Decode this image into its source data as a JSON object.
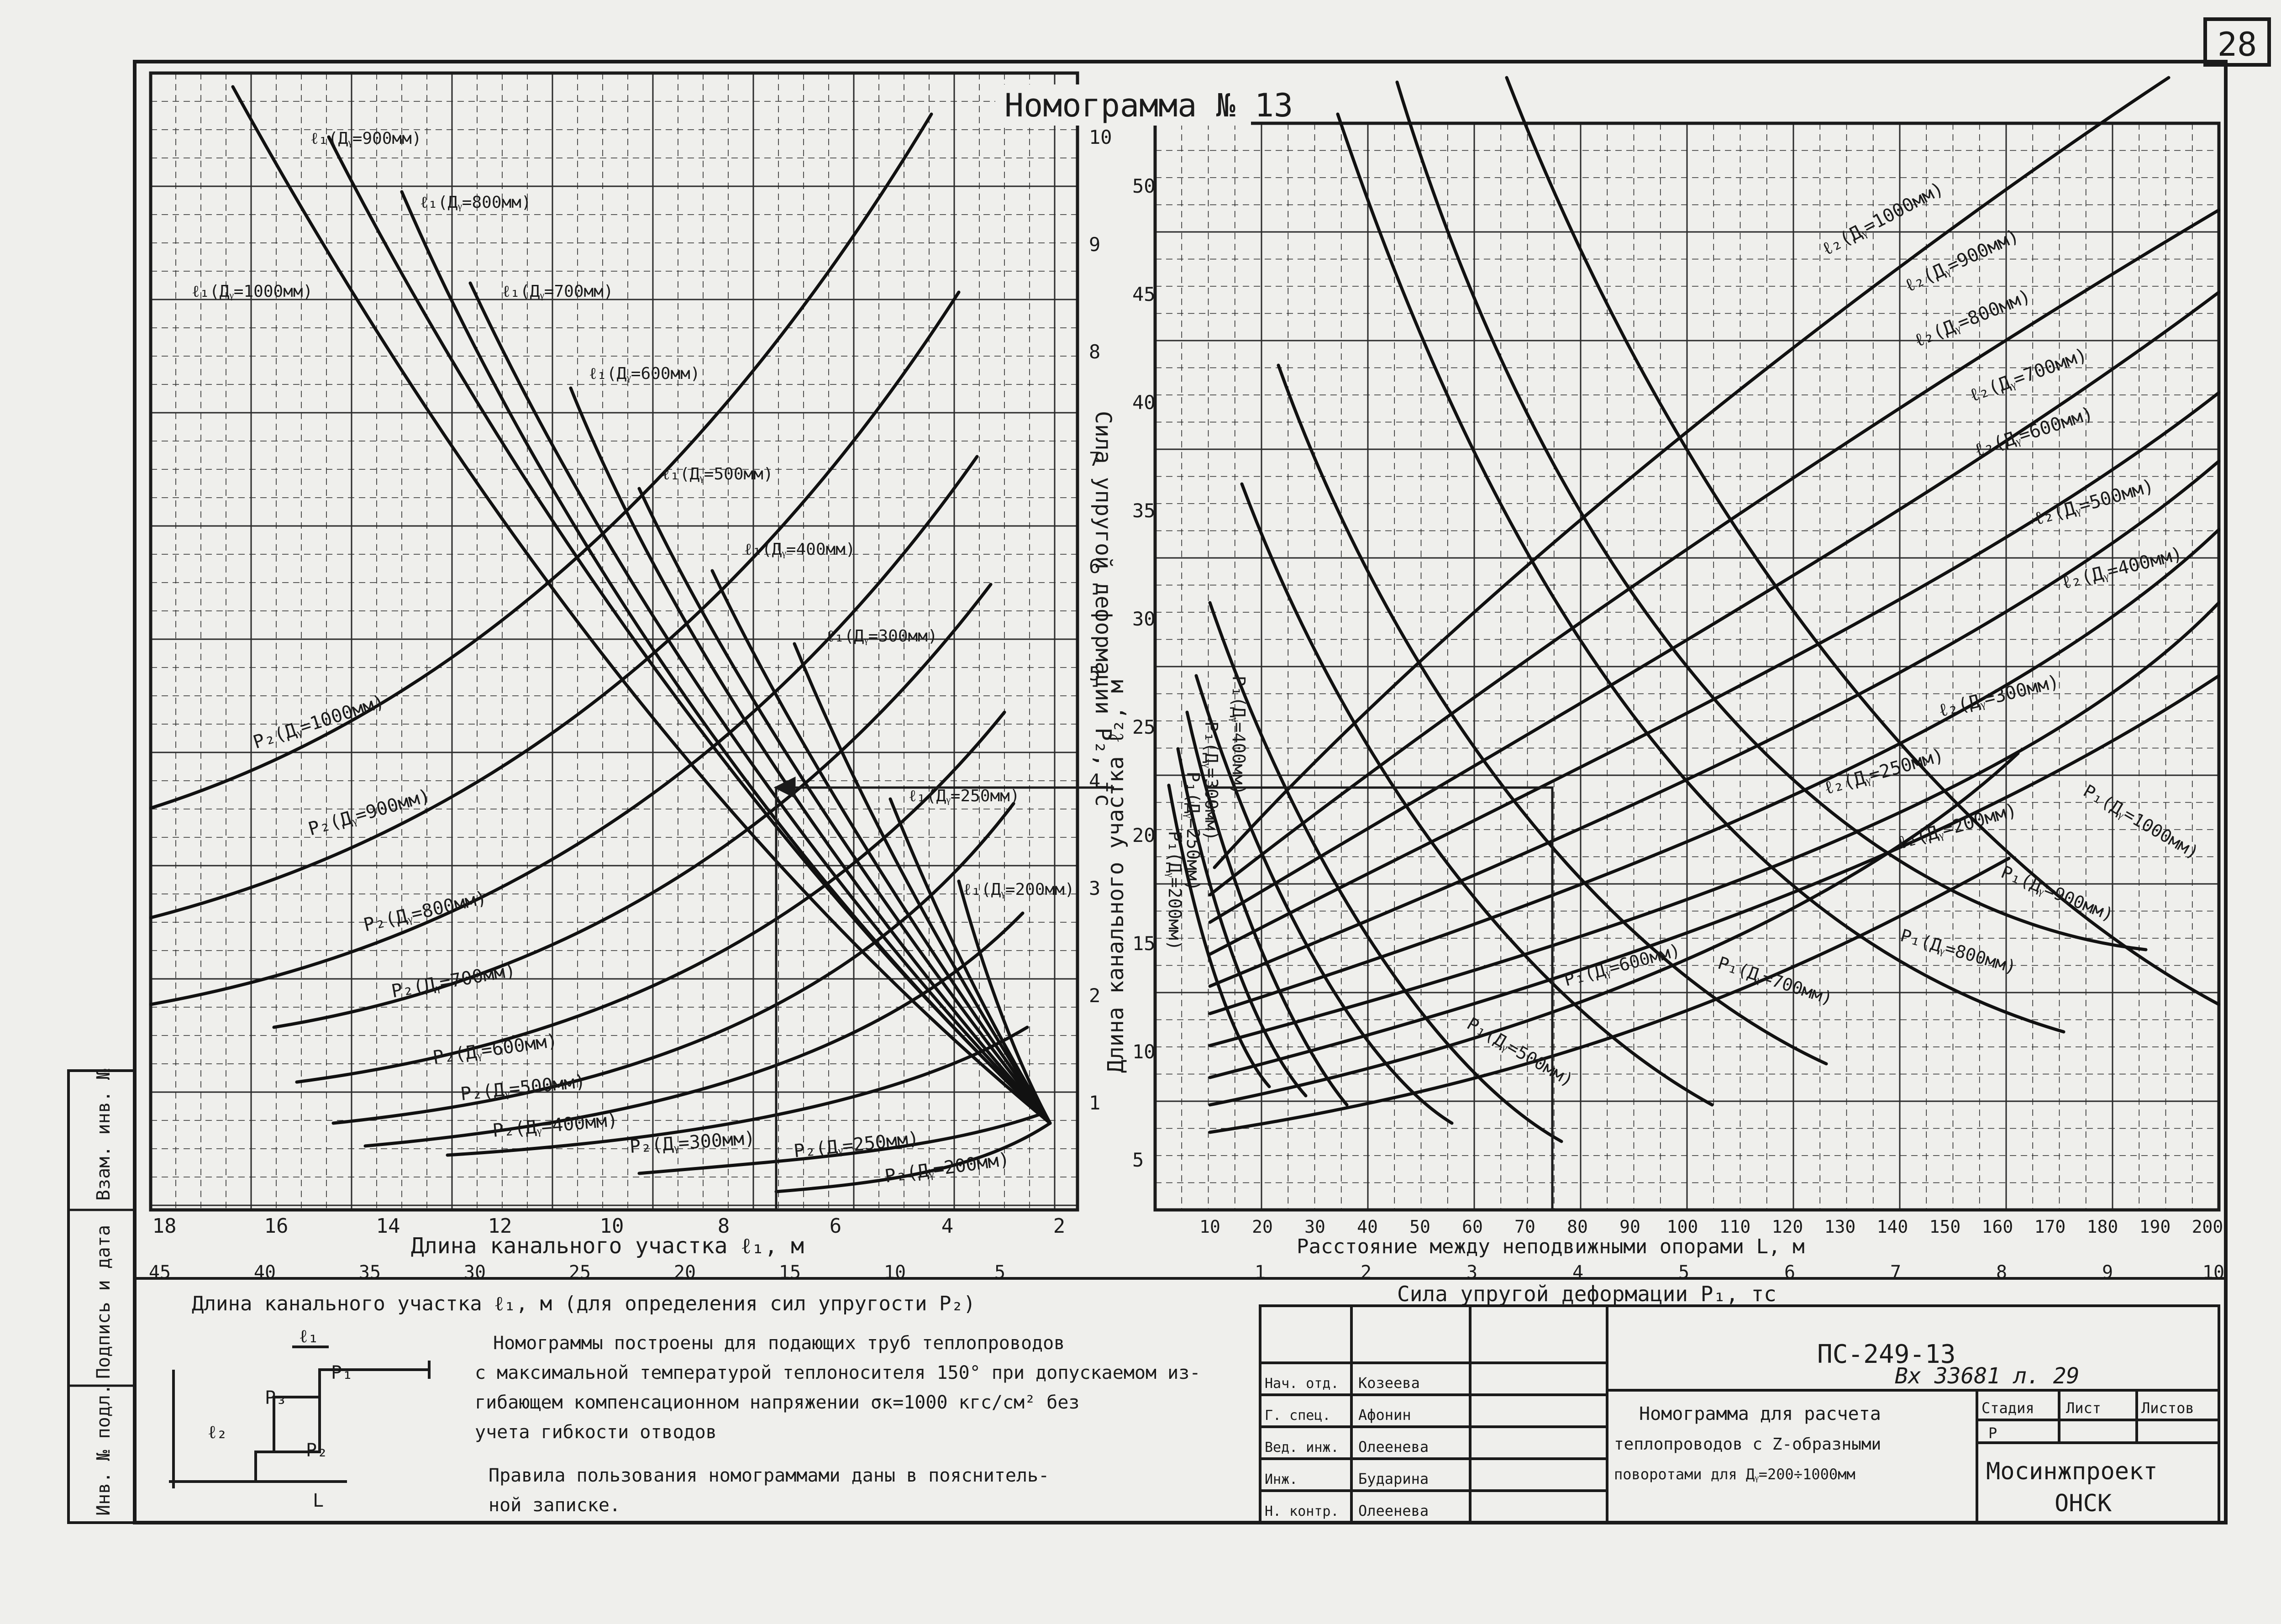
{
  "sheet_number": "28",
  "nomogram_title": "Номограмма № 13",
  "left_chart": {
    "x_top_ticks": [
      "18",
      "16",
      "14",
      "12",
      "10",
      "8",
      "6",
      "4",
      "2"
    ],
    "x_top_label": "Длина канального участка ℓ₁, м",
    "x_bottom_ticks": [
      "45",
      "40",
      "35",
      "30",
      "25",
      "20",
      "15",
      "10",
      "5"
    ],
    "x_bottom_label": "Длина канального участка ℓ₁, м (для определения сил упругости P₂)",
    "y_label": "Сила упругой деформации P₂, тс",
    "y_ticks": [
      "1",
      "2",
      "3",
      "4",
      "5",
      "6",
      "7",
      "8",
      "9",
      "10"
    ],
    "l1_curves": [
      "ℓ₁(Дᵧ=1000мм)",
      "ℓ₁(Дᵧ=900мм)",
      "ℓ₁(Дᵧ=800мм)",
      "ℓ₁(Дᵧ=700мм)",
      "ℓ₁(Дᵧ=600мм)",
      "ℓ₁(Дᵧ=500мм)",
      "ℓ₁(Дᵧ=400мм)",
      "ℓ₁(Дᵧ=300мм)",
      "ℓ₁(Дᵧ=250мм)",
      "ℓ₁(Дᵧ=200мм)"
    ],
    "p2_curves": [
      "P₂(Дᵧ=1000мм)",
      "P₂(Дᵧ=900мм)",
      "P₂(Дᵧ=800мм)",
      "P₂(Дᵧ=700мм)",
      "P₂(Дᵧ=600мм)",
      "P₂(Дᵧ=500мм)",
      "P₂(Дᵧ=400мм)",
      "P₂(Дᵧ=300мм)",
      "P₂(Дᵧ=250мм)",
      "P₂(Дᵧ=200мм)"
    ]
  },
  "right_chart": {
    "y_label": "Длина канального участка ℓ₂, м",
    "y_ticks": [
      "5",
      "10",
      "15",
      "20",
      "25",
      "30",
      "35",
      "40",
      "45",
      "50"
    ],
    "x_top_ticks": [
      "10",
      "20",
      "30",
      "40",
      "50",
      "60",
      "70",
      "80",
      "90",
      "100",
      "110",
      "120",
      "130",
      "140",
      "150",
      "160",
      "170",
      "180",
      "190",
      "200"
    ],
    "x_top_label": "Расстояние между неподвижными опорами L, м",
    "x_bottom_ticks": [
      "1",
      "2",
      "3",
      "4",
      "5",
      "6",
      "7",
      "8",
      "9",
      "10"
    ],
    "x_bottom_label": "Сила упругой деформации P₁, тс",
    "l2_curves": [
      "ℓ₂(Дᵧ=1000мм)",
      "ℓ₂(Дᵧ=900мм)",
      "ℓ₂(Дᵧ=800мм)",
      "ℓ₂(Дᵧ=700мм)",
      "ℓ₂(Дᵧ=600мм)",
      "ℓ₂(Дᵧ=500мм)",
      "ℓ₂(Дᵧ=400мм)",
      "ℓ₂(Дᵧ=300мм)",
      "ℓ₂(Дᵧ=250мм)",
      "ℓ₂(Дᵧ=200мм)"
    ],
    "p1_curves": [
      "P₁(Дᵧ=1000мм)",
      "P₁(Дᵧ=900мм)",
      "P₁(Дᵧ=800мм)",
      "P₁(Дᵧ=700мм)",
      "P₁(Дᵧ=600мм)",
      "P₁(Дᵧ=500мм)",
      "P₁(Дᵧ=400мм)",
      "P₁(Дᵧ=300мм)",
      "P₁(Дᵧ=250мм)",
      "P₁(Дᵧ=200мм)"
    ]
  },
  "schematic_labels": {
    "l1": "ℓ₁",
    "p1": "P₁",
    "p2": "P₂",
    "p3": "P₃",
    "l2": "ℓ₂",
    "L": "L"
  },
  "notes": [
    "Номограммы построены для подающих труб теплопроводов",
    "с максимальной температурой теплоносителя 150° при допускаемом из-",
    "гибающем компенсационном напряжении σк=1000 кгс/см² без",
    "учета гибкости отводов",
    "Правила пользования номограммами даны в пояснитель-",
    "ной записке."
  ],
  "title_block": {
    "doc_code": "ПС-249-13",
    "archive_note": "Вх 33681 л. 29",
    "title_lines": [
      "Номограмма для расчета",
      "теплопроводов с Z-образными",
      "поворотами для Дᵧ=200÷1000мм"
    ],
    "stage_headers": [
      "Стадия",
      "Лист",
      "Листов"
    ],
    "stage_value": "Р",
    "org_name": "Мосинжпроект",
    "org_city": "ОНСК",
    "signatures": [
      {
        "role": "Нач. отд.",
        "name": "Козеева"
      },
      {
        "role": "Г. спец.",
        "name": "Афонин"
      },
      {
        "role": "Вед. инж.",
        "name": "Олеенева"
      },
      {
        "role": "Инж.",
        "name": "Бударина"
      },
      {
        "role": "Н. контр.",
        "name": "Олеенева"
      }
    ]
  },
  "side_stamp": [
    "Инв. № подл.",
    "Подпись и дата",
    "Взам. инв. №"
  ]
}
